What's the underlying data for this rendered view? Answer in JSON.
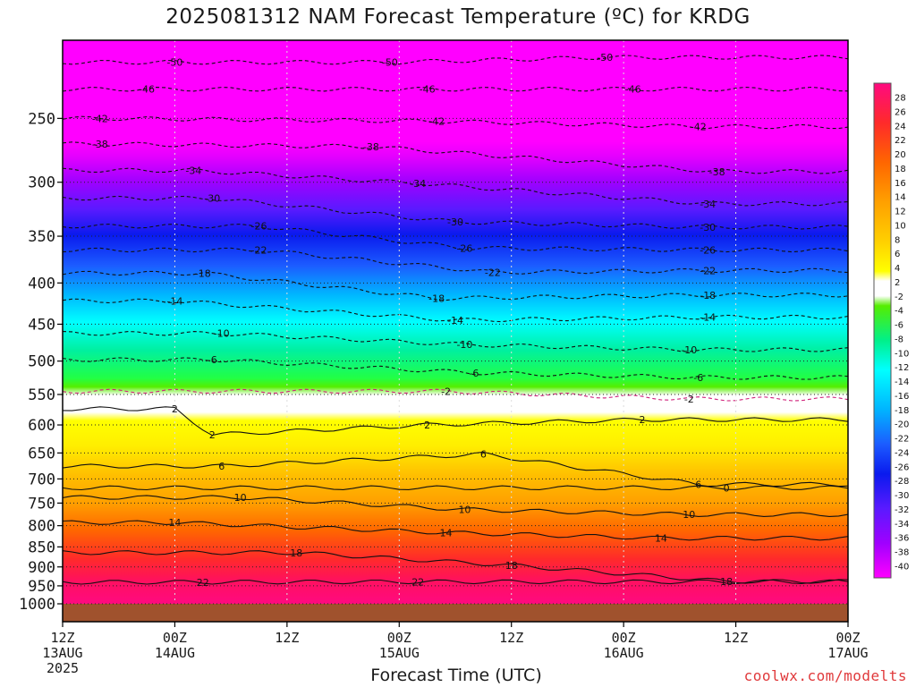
{
  "title": "2025081312 NAM Forecast Temperature (ºC) for KRDG",
  "xlabel": "Forecast Time (UTC)",
  "credit": "coolwx.com/modelts",
  "chart_data": {
    "type": "heatmap",
    "title": "2025081312 NAM Forecast Temperature (ºC) for KRDG",
    "xlabel": "Forecast Time (UTC)",
    "ylabel": "",
    "y_scale": "log pressure",
    "y_ticks": [
      250,
      300,
      350,
      400,
      450,
      500,
      550,
      600,
      650,
      700,
      750,
      800,
      850,
      900,
      950,
      1000
    ],
    "x_ticks": [
      {
        "h": 0,
        "lines": [
          "12Z",
          "13AUG",
          "2025"
        ]
      },
      {
        "h": 12,
        "lines": [
          "00Z",
          "14AUG"
        ]
      },
      {
        "h": 24,
        "lines": [
          "12Z"
        ]
      },
      {
        "h": 36,
        "lines": [
          "00Z",
          "15AUG"
        ]
      },
      {
        "h": 48,
        "lines": [
          "12Z"
        ]
      },
      {
        "h": 60,
        "lines": [
          "00Z",
          "16AUG"
        ]
      },
      {
        "h": 72,
        "lines": [
          "12Z"
        ]
      },
      {
        "h": 84,
        "lines": [
          "00Z",
          "17AUG"
        ]
      }
    ],
    "x_range_hours": [
      0,
      84
    ],
    "grid": true,
    "colorbar": {
      "labels": [
        "28",
        "26",
        "24",
        "22",
        "20",
        "18",
        "16",
        "14",
        "12",
        "10",
        "8",
        "6",
        "4",
        "2",
        "-2",
        "-4",
        "-6",
        "-8",
        "-10",
        "-12",
        "-14",
        "-16",
        "-18",
        "-20",
        "-22",
        "-24",
        "-26",
        "-28",
        "-30",
        "-32",
        "-34",
        "-36",
        "-38",
        "-40"
      ]
    },
    "contour_labels": [
      {
        "v": "-50",
        "h": 12,
        "p": 213
      },
      {
        "v": "-50",
        "h": 35,
        "p": 213
      },
      {
        "v": "-50",
        "h": 58,
        "p": 210
      },
      {
        "v": "-46",
        "h": 9,
        "p": 230
      },
      {
        "v": "-46",
        "h": 39,
        "p": 230
      },
      {
        "v": "-46",
        "h": 61,
        "p": 230
      },
      {
        "v": "-42",
        "h": 4,
        "p": 250
      },
      {
        "v": "-42",
        "h": 40,
        "p": 252
      },
      {
        "v": "-42",
        "h": 68,
        "p": 256
      },
      {
        "v": "-38",
        "h": 4,
        "p": 269
      },
      {
        "v": "-38",
        "h": 33,
        "p": 271
      },
      {
        "v": "-38",
        "h": 70,
        "p": 291
      },
      {
        "v": "-34",
        "h": 14,
        "p": 290
      },
      {
        "v": "-34",
        "h": 38,
        "p": 301
      },
      {
        "v": "-34",
        "h": 69,
        "p": 319
      },
      {
        "v": "-30",
        "h": 16,
        "p": 314
      },
      {
        "v": "-30",
        "h": 42,
        "p": 336
      },
      {
        "v": "-30",
        "h": 69,
        "p": 341
      },
      {
        "v": "-26",
        "h": 21,
        "p": 340
      },
      {
        "v": "-26",
        "h": 43,
        "p": 362
      },
      {
        "v": "-26",
        "h": 69,
        "p": 364
      },
      {
        "v": "-22",
        "h": 21,
        "p": 364
      },
      {
        "v": "-22",
        "h": 46,
        "p": 388
      },
      {
        "v": "-22",
        "h": 69,
        "p": 386
      },
      {
        "v": "-18",
        "h": 15,
        "p": 389
      },
      {
        "v": "-18",
        "h": 40,
        "p": 418
      },
      {
        "v": "-18",
        "h": 69,
        "p": 414
      },
      {
        "v": "-14",
        "h": 12,
        "p": 421
      },
      {
        "v": "-14",
        "h": 42,
        "p": 445
      },
      {
        "v": "-14",
        "h": 69,
        "p": 441
      },
      {
        "v": "-10",
        "h": 17,
        "p": 462
      },
      {
        "v": "-10",
        "h": 43,
        "p": 477
      },
      {
        "v": "-10",
        "h": 67,
        "p": 484
      },
      {
        "v": "-6",
        "h": 16,
        "p": 498
      },
      {
        "v": "-6",
        "h": 44,
        "p": 517
      },
      {
        "v": "-6",
        "h": 68,
        "p": 524
      },
      {
        "v": "-2",
        "h": 41,
        "p": 545
      },
      {
        "v": "-2",
        "h": 67,
        "p": 557
      },
      {
        "v": "2",
        "h": 12,
        "p": 573
      },
      {
        "v": "2",
        "h": 16,
        "p": 617
      },
      {
        "v": "2",
        "h": 39,
        "p": 600
      },
      {
        "v": "2",
        "h": 62,
        "p": 591
      },
      {
        "v": "6",
        "h": 17,
        "p": 675
      },
      {
        "v": "6",
        "h": 45,
        "p": 652
      },
      {
        "v": "6",
        "h": 68,
        "p": 711
      },
      {
        "v": "0",
        "h": 71,
        "p": 718
      },
      {
        "v": "10",
        "h": 19,
        "p": 738
      },
      {
        "v": "10",
        "h": 43,
        "p": 764
      },
      {
        "v": "10",
        "h": 67,
        "p": 775
      },
      {
        "v": "14",
        "h": 12,
        "p": 793
      },
      {
        "v": "14",
        "h": 41,
        "p": 816
      },
      {
        "v": "14",
        "h": 64,
        "p": 829
      },
      {
        "v": "18",
        "h": 25,
        "p": 864
      },
      {
        "v": "18",
        "h": 48,
        "p": 896
      },
      {
        "v": "18",
        "h": 71,
        "p": 938
      },
      {
        "v": "22",
        "h": 15,
        "p": 940
      },
      {
        "v": "22",
        "h": 38,
        "p": 939
      }
    ]
  }
}
